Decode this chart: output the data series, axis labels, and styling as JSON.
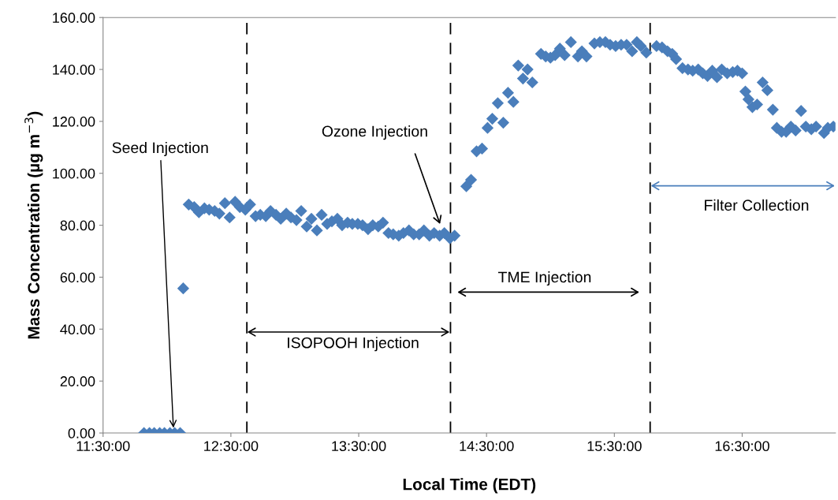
{
  "chart_data": {
    "type": "scatter",
    "xlabel": "Local Time (EDT)",
    "ylabel": "Mass Concentration (µg m$^{−3}$)",
    "marker": "diamond",
    "grid": false,
    "legend": false,
    "xlim": [
      11.5,
      17.23
    ],
    "ylim": [
      0,
      160
    ],
    "xticks": [
      {
        "value": 11.5,
        "label": "11:30:00"
      },
      {
        "value": 12.5,
        "label": "12:30:00"
      },
      {
        "value": 13.5,
        "label": "13:30:00"
      },
      {
        "value": 14.5,
        "label": "14:30:00"
      },
      {
        "value": 15.5,
        "label": "15:30:00"
      },
      {
        "value": 16.5,
        "label": "16:30:00"
      }
    ],
    "yticks": [
      {
        "value": 0,
        "label": "0.00"
      },
      {
        "value": 20,
        "label": "20.00"
      },
      {
        "value": 40,
        "label": "40.00"
      },
      {
        "value": 60,
        "label": "60.00"
      },
      {
        "value": 80,
        "label": "80.00"
      },
      {
        "value": 100,
        "label": "100.00"
      },
      {
        "value": 120,
        "label": "120.00"
      },
      {
        "value": 140,
        "label": "140.00"
      },
      {
        "value": 160,
        "label": "160.00"
      }
    ],
    "series": [
      {
        "color": "#4a7ebb",
        "x": [
          11.82,
          11.863,
          11.9,
          11.943,
          11.98,
          12.023,
          12.06,
          12.103,
          12.127,
          12.17,
          12.213,
          12.25,
          12.293,
          12.33,
          12.373,
          12.41,
          12.453,
          12.49,
          12.533,
          12.57,
          12.613,
          12.65,
          12.693,
          12.73,
          12.773,
          12.81,
          12.853,
          12.89,
          12.933,
          12.97,
          13.013,
          13.05,
          13.093,
          13.13,
          13.173,
          13.21,
          13.253,
          13.29,
          13.333,
          13.37,
          13.413,
          13.45,
          13.493,
          13.53,
          13.573,
          13.61,
          13.653,
          13.69,
          13.733,
          13.77,
          13.813,
          13.85,
          13.893,
          13.93,
          13.973,
          14.01,
          14.053,
          14.09,
          14.133,
          14.17,
          14.213,
          14.25,
          14.342,
          14.379,
          14.422,
          14.465,
          14.508,
          14.545,
          14.588,
          14.631,
          14.668,
          14.71,
          14.748,
          14.785,
          14.821,
          14.858,
          14.926,
          14.963,
          15.0,
          15.037,
          15.074,
          15.111,
          15.16,
          15.215,
          15.246,
          15.282,
          15.344,
          15.387,
          15.43,
          15.467,
          15.51,
          15.553,
          15.596,
          15.639,
          15.676,
          15.707,
          15.75,
          15.83,
          15.873,
          15.916,
          15.953,
          15.983,
          16.033,
          16.076,
          16.113,
          16.156,
          16.192,
          16.229,
          16.266,
          16.303,
          16.34,
          16.383,
          16.426,
          16.463,
          16.5,
          16.525,
          16.549,
          16.58,
          16.617,
          16.66,
          16.697,
          16.74,
          16.771,
          16.808,
          16.844,
          16.881,
          16.918,
          16.961,
          16.998,
          17.041,
          17.078,
          17.14,
          17.17,
          17.213
        ],
        "values": [
          0,
          0,
          0,
          0,
          0,
          0,
          0,
          0,
          55.7,
          88,
          87,
          85,
          86.5,
          86,
          85.5,
          84.5,
          88.5,
          83,
          89,
          87,
          86,
          88,
          83.5,
          84,
          83.5,
          85.5,
          84,
          82.5,
          84.5,
          83,
          82,
          85.5,
          79.5,
          82.5,
          78,
          84,
          80.5,
          81.5,
          82.5,
          80,
          81,
          80.5,
          80.5,
          80,
          78.5,
          80,
          79.5,
          81,
          77,
          76.5,
          76,
          77,
          78,
          76.5,
          76.5,
          78,
          76,
          77,
          76,
          77,
          75,
          76,
          95,
          97.5,
          108.5,
          109.5,
          117.5,
          121,
          127,
          119.5,
          131,
          127.5,
          141.5,
          136.5,
          140,
          135,
          146,
          145,
          144.5,
          145.5,
          148,
          145.5,
          150.5,
          145,
          147,
          145,
          150,
          150.5,
          150.5,
          149.5,
          149,
          149.5,
          149.5,
          147,
          150.5,
          149,
          146.5,
          149,
          148.5,
          147,
          146,
          144,
          140.5,
          140,
          139.5,
          140,
          138.5,
          137.5,
          139.5,
          137,
          140,
          138.5,
          139,
          139.5,
          138.5,
          131.5,
          128.5,
          125.5,
          126.5,
          135,
          132,
          124.5,
          117.5,
          116,
          116,
          118,
          116.5,
          124,
          118,
          117,
          118,
          115.5,
          117.5,
          118
        ]
      }
    ],
    "ref_lines": [
      {
        "axis": "x",
        "value": 12.625,
        "color": "#000000",
        "line_style": "dashed"
      },
      {
        "axis": "x",
        "value": 14.218,
        "color": "#000000",
        "line_style": "dashed"
      },
      {
        "axis": "x",
        "value": 15.78,
        "color": "#000000",
        "line_style": "dashed"
      }
    ],
    "annotations": [
      {
        "text": "Seed Injection",
        "x": 12.05,
        "y": 2
      },
      "Ozone Injection",
      "ISOPOOH Injection",
      "TME Injection",
      "Filter Collection"
    ]
  }
}
